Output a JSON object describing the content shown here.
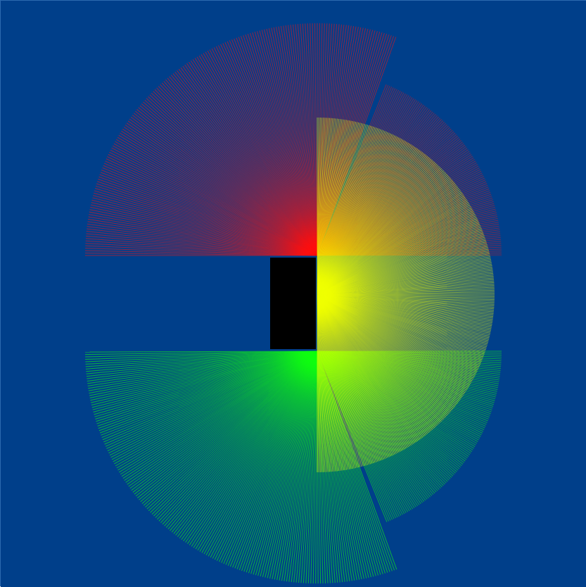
{
  "canvas": {
    "background": "#003f8a"
  },
  "shapes": {
    "red_fan": {
      "color": "#ff0000",
      "stroke": "#ff1010"
    },
    "green_fan": {
      "color": "#00ff00",
      "stroke": "#10ff10"
    },
    "yellow_fan": {
      "color": "#ffff00",
      "stroke": "#f0ff00"
    },
    "center_block": {
      "color": "#000000"
    }
  }
}
